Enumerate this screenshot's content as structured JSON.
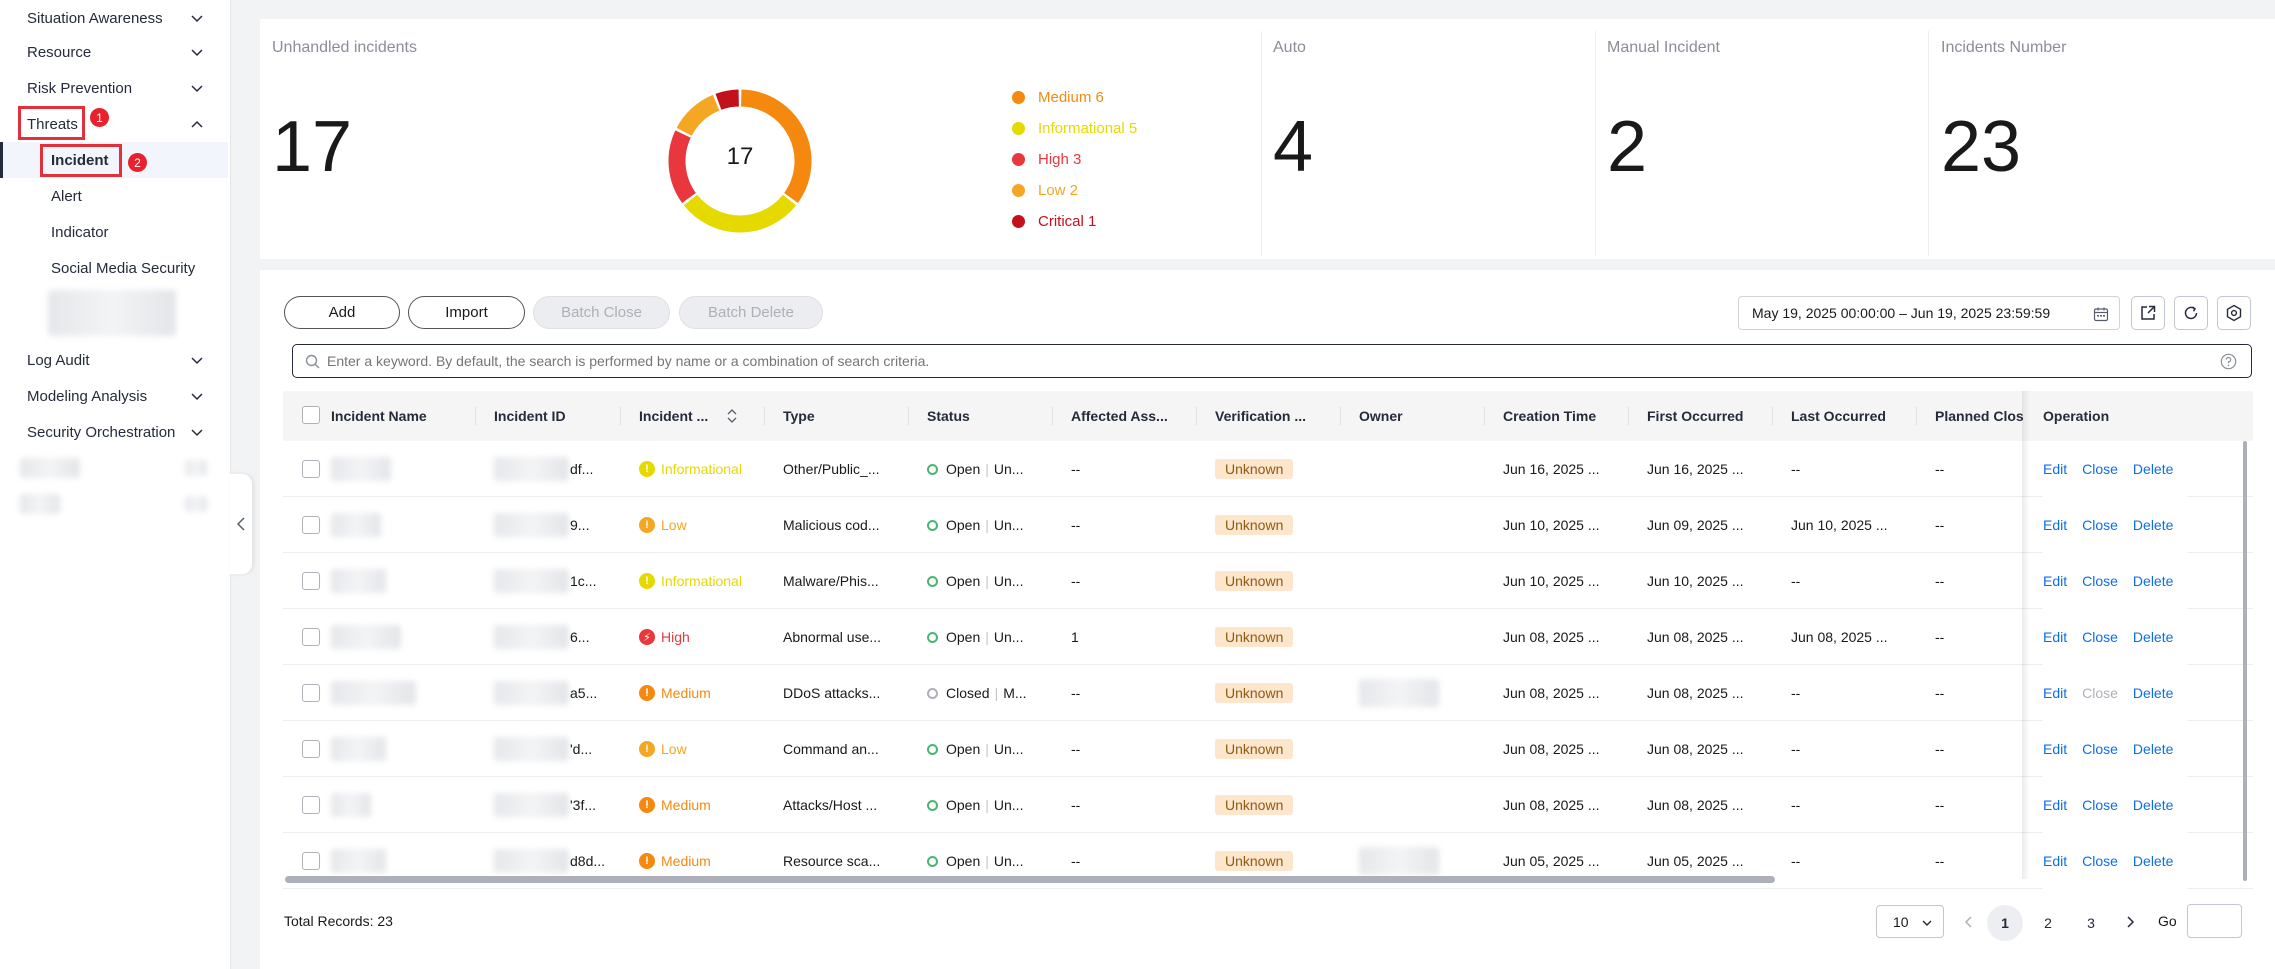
{
  "sidebar": {
    "items": [
      {
        "label": "Situation Awareness"
      },
      {
        "label": "Resource"
      },
      {
        "label": "Risk Prevention"
      },
      {
        "label": "Threats"
      },
      {
        "label": "Log Audit"
      },
      {
        "label": "Modeling Analysis"
      },
      {
        "label": "Security Orchestration"
      }
    ],
    "threats_sub": [
      {
        "label": "Incident"
      },
      {
        "label": "Alert"
      },
      {
        "label": "Indicator"
      },
      {
        "label": "Social Media Security"
      }
    ],
    "step_badges": [
      "1",
      "2"
    ]
  },
  "stats": {
    "unhandled": {
      "title": "Unhandled incidents",
      "value": "17"
    },
    "donut_total": "17",
    "legend": [
      {
        "label": "Medium 6",
        "value": 6,
        "color": "#f5890f"
      },
      {
        "label": "Informational 5",
        "value": 5,
        "color": "#e6d900"
      },
      {
        "label": "High 3",
        "value": 3,
        "color": "#e8373d"
      },
      {
        "label": "Low 2",
        "value": 2,
        "color": "#f5a623"
      },
      {
        "label": "Critical 1",
        "value": 1,
        "color": "#c2111c"
      }
    ],
    "auto": {
      "title": "Auto",
      "value": "4"
    },
    "manual": {
      "title": "Manual Incident",
      "value": "2"
    },
    "number": {
      "title": "Incidents Number",
      "value": "23"
    }
  },
  "toolbar": {
    "add": "Add",
    "import": "Import",
    "batch_close": "Batch Close",
    "batch_delete": "Batch Delete",
    "date_range": "May 19, 2025 00:00:00 – Jun 19, 2025 23:59:59",
    "search_placeholder": "Enter a keyword. By default, the search is performed by name or a combination of search criteria."
  },
  "table": {
    "headers": [
      "Incident Name",
      "Incident ID",
      "Incident ...",
      "Type",
      "Status",
      "Affected Ass...",
      "Verification ...",
      "Owner",
      "Creation Time",
      "First Occurred",
      "Last Occurred",
      "Planned Clos",
      "Operation"
    ],
    "rows": [
      {
        "id_tail": "df...",
        "severity": "Informational",
        "type": "Other/Public_...",
        "status": "Open",
        "status2": "Un...",
        "affected": "--",
        "verification": "Unknown",
        "created": "Jun 16, 2025 ...",
        "first": "Jun 16, 2025 ...",
        "last": "--",
        "planned": "--"
      },
      {
        "id_tail": "9...",
        "severity": "Low",
        "type": "Malicious cod...",
        "status": "Open",
        "status2": "Un...",
        "affected": "--",
        "verification": "Unknown",
        "created": "Jun 10, 2025 ...",
        "first": "Jun 09, 2025 ...",
        "last": "Jun 10, 2025 ...",
        "planned": "--"
      },
      {
        "id_tail": "1c...",
        "severity": "Informational",
        "type": "Malware/Phis...",
        "status": "Open",
        "status2": "Un...",
        "affected": "--",
        "verification": "Unknown",
        "created": "Jun 10, 2025 ...",
        "first": "Jun 10, 2025 ...",
        "last": "--",
        "planned": "--"
      },
      {
        "id_tail": "6...",
        "severity": "High",
        "type": "Abnormal use...",
        "status": "Open",
        "status2": "Un...",
        "affected": "1",
        "verification": "Unknown",
        "created": "Jun 08, 2025 ...",
        "first": "Jun 08, 2025 ...",
        "last": "Jun 08, 2025 ...",
        "planned": "--"
      },
      {
        "id_tail": "a5...",
        "severity": "Medium",
        "type": "DDoS attacks...",
        "status": "Closed",
        "status2": "M...",
        "affected": "--",
        "verification": "Unknown",
        "created": "Jun 08, 2025 ...",
        "first": "Jun 08, 2025 ...",
        "last": "--",
        "planned": "--"
      },
      {
        "id_tail": "'d...",
        "severity": "Low",
        "type": "Command an...",
        "status": "Open",
        "status2": "Un...",
        "affected": "--",
        "verification": "Unknown",
        "created": "Jun 08, 2025 ...",
        "first": "Jun 08, 2025 ...",
        "last": "--",
        "planned": "--"
      },
      {
        "id_tail": "'3f...",
        "severity": "Medium",
        "type": "Attacks/Host ...",
        "status": "Open",
        "status2": "Un...",
        "affected": "--",
        "verification": "Unknown",
        "created": "Jun 08, 2025 ...",
        "first": "Jun 08, 2025 ...",
        "last": "--",
        "planned": "--"
      },
      {
        "id_tail": "d8d...",
        "severity": "Medium",
        "type": "Resource sca...",
        "status": "Open",
        "status2": "Un...",
        "affected": "--",
        "verification": "Unknown",
        "created": "Jun 05, 2025 ...",
        "first": "Jun 05, 2025 ...",
        "last": "--",
        "planned": "--"
      }
    ],
    "ops": {
      "edit": "Edit",
      "close": "Close",
      "delete": "Delete"
    }
  },
  "footer": {
    "total": "Total Records: 23",
    "page_size": "10",
    "pages": [
      "1",
      "2",
      "3"
    ],
    "current_page": "1",
    "goto": "Go"
  },
  "severity_colors": {
    "Informational": "#e6d900",
    "Low": "#f5a623",
    "Medium": "#f5890f",
    "High": "#e8373d",
    "Critical": "#c2111c"
  }
}
